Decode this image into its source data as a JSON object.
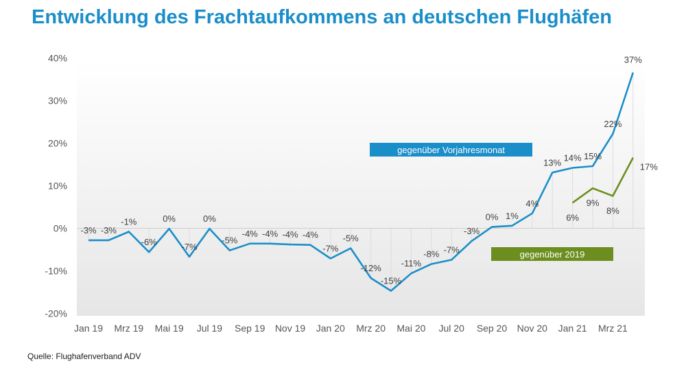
{
  "title": "Entwicklung des Frachtaufkommens an deutschen Flughäfen",
  "source": "Quelle: Flughafenverband ADV",
  "colors": {
    "title": "#1a8ec9",
    "series1": "#1a8ec9",
    "series2": "#6b8e1e"
  },
  "chart_data": {
    "type": "line",
    "title": "Entwicklung des Frachtaufkommens an deutschen Flughäfen",
    "ylim": [
      -20,
      40
    ],
    "yticks": [
      "-20%",
      "-10%",
      "0%",
      "10%",
      "20%",
      "30%",
      "40%"
    ],
    "grid": false,
    "x": [
      "Jan 19",
      "Feb 19",
      "Mrz 19",
      "Apr 19",
      "Mai 19",
      "Jun 19",
      "Jul 19",
      "Aug 19",
      "Sep 19",
      "Okt 19",
      "Nov 19",
      "Dez 19",
      "Jan 20",
      "Feb 20",
      "Mrz 20",
      "Apr 20",
      "Mai 20",
      "Jun 20",
      "Jul 20",
      "Aug 20",
      "Sep 20",
      "Okt 20",
      "Nov 20",
      "Dez 20",
      "Jan 21",
      "Feb 21",
      "Mrz 21",
      "Apr 21"
    ],
    "xtick_labels": [
      "Jan 19",
      "Mrz 19",
      "Mai 19",
      "Jul 19",
      "Sep 19",
      "Nov 19",
      "Jan 20",
      "Mrz 20",
      "Mai 20",
      "Jul 20",
      "Sep 20",
      "Nov 20",
      "Jan 21",
      "Mrz 21"
    ],
    "series": [
      {
        "name": "gegenüber Vorjahresmonat",
        "color": "#1a8ec9",
        "values": [
          -2.8,
          -2.8,
          -0.8,
          -5.6,
          -0.1,
          -6.7,
          -0.1,
          -5.2,
          -3.6,
          -3.6,
          -3.8,
          -3.9,
          -7.1,
          -4.7,
          -11.7,
          -14.7,
          -10.6,
          -8.4,
          -7.4,
          -3.0,
          0.3,
          0.6,
          3.5,
          13.1,
          14.2,
          14.6,
          22.2,
          36.6
        ],
        "labels": [
          "-3%",
          "-3%",
          "-1%",
          "-6%",
          "0%",
          "-7%",
          "0%",
          "-5%",
          "-4%",
          "-4%",
          "-4%",
          "-4%",
          "-7%",
          "-5%",
          "-12%",
          "-15%",
          "-11%",
          "-8%",
          "-7%",
          "-3%",
          "0%",
          "1%",
          "4%",
          "13%",
          "14%",
          "15%",
          "22%",
          "37%"
        ]
      },
      {
        "name": "gegenüber 2019",
        "color": "#6b8e1e",
        "values": [
          null,
          null,
          null,
          null,
          null,
          null,
          null,
          null,
          null,
          null,
          null,
          null,
          null,
          null,
          null,
          null,
          null,
          null,
          null,
          null,
          null,
          null,
          null,
          null,
          6.0,
          9.4,
          7.6,
          16.6
        ],
        "labels": [
          null,
          null,
          null,
          null,
          null,
          null,
          null,
          null,
          null,
          null,
          null,
          null,
          null,
          null,
          null,
          null,
          null,
          null,
          null,
          null,
          null,
          null,
          null,
          null,
          "6%",
          "9%",
          "8%",
          "17%"
        ]
      }
    ]
  }
}
